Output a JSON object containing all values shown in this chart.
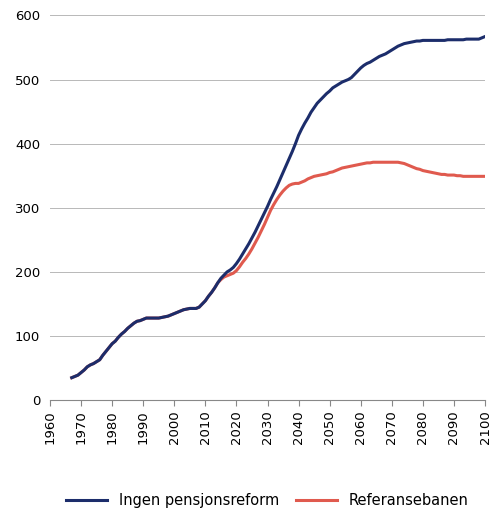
{
  "xlim": [
    1960,
    2100
  ],
  "ylim": [
    0,
    600
  ],
  "yticks": [
    0,
    100,
    200,
    300,
    400,
    500,
    600
  ],
  "xticks": [
    1960,
    1970,
    1980,
    1990,
    2000,
    2010,
    2020,
    2030,
    2040,
    2050,
    2060,
    2070,
    2080,
    2090,
    2100
  ],
  "ingen_reform_color": "#1c2d6b",
  "referanse_color": "#e05a4e",
  "ingen_reform_label": "Ingen pensjonsreform",
  "referanse_label": "Referansebanen",
  "ingen_reform": {
    "x": [
      1967,
      1968,
      1969,
      1970,
      1971,
      1972,
      1973,
      1974,
      1975,
      1976,
      1977,
      1978,
      1979,
      1980,
      1981,
      1982,
      1983,
      1984,
      1985,
      1986,
      1987,
      1988,
      1989,
      1990,
      1991,
      1992,
      1993,
      1994,
      1995,
      1996,
      1997,
      1998,
      1999,
      2000,
      2001,
      2002,
      2003,
      2004,
      2005,
      2006,
      2007,
      2008,
      2009,
      2010,
      2011,
      2012,
      2013,
      2014,
      2015,
      2016,
      2017,
      2018,
      2019,
      2020,
      2021,
      2022,
      2023,
      2024,
      2025,
      2026,
      2027,
      2028,
      2029,
      2030,
      2031,
      2032,
      2033,
      2034,
      2035,
      2036,
      2037,
      2038,
      2039,
      2040,
      2041,
      2042,
      2043,
      2044,
      2045,
      2046,
      2047,
      2048,
      2049,
      2050,
      2051,
      2052,
      2053,
      2054,
      2055,
      2056,
      2057,
      2058,
      2059,
      2060,
      2061,
      2062,
      2063,
      2064,
      2065,
      2066,
      2067,
      2068,
      2069,
      2070,
      2071,
      2072,
      2073,
      2074,
      2075,
      2076,
      2077,
      2078,
      2079,
      2080,
      2081,
      2082,
      2083,
      2084,
      2085,
      2086,
      2087,
      2088,
      2089,
      2090,
      2091,
      2092,
      2093,
      2094,
      2095,
      2096,
      2097,
      2098,
      2099,
      2100
    ],
    "y": [
      35,
      37,
      39,
      43,
      47,
      52,
      55,
      57,
      60,
      63,
      70,
      76,
      82,
      88,
      92,
      98,
      103,
      107,
      112,
      116,
      120,
      123,
      124,
      126,
      128,
      128,
      128,
      128,
      128,
      129,
      130,
      131,
      133,
      135,
      137,
      139,
      141,
      142,
      143,
      143,
      143,
      145,
      150,
      155,
      162,
      168,
      175,
      183,
      190,
      195,
      200,
      203,
      207,
      213,
      220,
      228,
      236,
      244,
      253,
      262,
      272,
      282,
      292,
      302,
      313,
      323,
      333,
      344,
      355,
      366,
      377,
      388,
      400,
      413,
      423,
      432,
      440,
      449,
      456,
      463,
      468,
      473,
      478,
      482,
      487,
      490,
      493,
      496,
      498,
      500,
      503,
      508,
      513,
      518,
      522,
      525,
      527,
      530,
      533,
      536,
      538,
      540,
      543,
      546,
      549,
      552,
      554,
      556,
      557,
      558,
      559,
      560,
      560,
      561,
      561,
      561,
      561,
      561,
      561,
      561,
      561,
      562,
      562,
      562,
      562,
      562,
      562,
      563,
      563,
      563,
      563,
      563,
      565,
      567
    ]
  },
  "referanse": {
    "x": [
      1967,
      1968,
      1969,
      1970,
      1971,
      1972,
      1973,
      1974,
      1975,
      1976,
      1977,
      1978,
      1979,
      1980,
      1981,
      1982,
      1983,
      1984,
      1985,
      1986,
      1987,
      1988,
      1989,
      1990,
      1991,
      1992,
      1993,
      1994,
      1995,
      1996,
      1997,
      1998,
      1999,
      2000,
      2001,
      2002,
      2003,
      2004,
      2005,
      2006,
      2007,
      2008,
      2009,
      2010,
      2011,
      2012,
      2013,
      2014,
      2015,
      2016,
      2017,
      2018,
      2019,
      2020,
      2021,
      2022,
      2023,
      2024,
      2025,
      2026,
      2027,
      2028,
      2029,
      2030,
      2031,
      2032,
      2033,
      2034,
      2035,
      2036,
      2037,
      2038,
      2039,
      2040,
      2041,
      2042,
      2043,
      2044,
      2045,
      2046,
      2047,
      2048,
      2049,
      2050,
      2051,
      2052,
      2053,
      2054,
      2055,
      2056,
      2057,
      2058,
      2059,
      2060,
      2061,
      2062,
      2063,
      2064,
      2065,
      2066,
      2067,
      2068,
      2069,
      2070,
      2071,
      2072,
      2073,
      2074,
      2075,
      2076,
      2077,
      2078,
      2079,
      2080,
      2081,
      2082,
      2083,
      2084,
      2085,
      2086,
      2087,
      2088,
      2089,
      2090,
      2091,
      2092,
      2093,
      2094,
      2095,
      2096,
      2097,
      2098,
      2099,
      2100
    ],
    "y": [
      35,
      37,
      39,
      43,
      47,
      52,
      55,
      57,
      60,
      63,
      70,
      76,
      82,
      88,
      92,
      98,
      103,
      107,
      112,
      116,
      120,
      123,
      124,
      126,
      128,
      128,
      128,
      128,
      128,
      129,
      130,
      131,
      133,
      135,
      137,
      139,
      141,
      142,
      143,
      143,
      143,
      145,
      150,
      155,
      162,
      168,
      175,
      183,
      188,
      192,
      194,
      196,
      198,
      202,
      208,
      215,
      221,
      228,
      236,
      245,
      254,
      264,
      274,
      285,
      296,
      305,
      313,
      320,
      326,
      331,
      335,
      337,
      338,
      338,
      340,
      342,
      345,
      347,
      349,
      350,
      351,
      352,
      353,
      355,
      356,
      358,
      360,
      362,
      363,
      364,
      365,
      366,
      367,
      368,
      369,
      370,
      370,
      371,
      371,
      371,
      371,
      371,
      371,
      371,
      371,
      371,
      370,
      369,
      367,
      365,
      363,
      361,
      360,
      358,
      357,
      356,
      355,
      354,
      353,
      352,
      352,
      351,
      351,
      351,
      350,
      350,
      349,
      349,
      349,
      349,
      349,
      349,
      349,
      349
    ]
  },
  "linewidth": 2.2,
  "background_color": "#ffffff",
  "grid_color": "#b8b8b8",
  "legend_fontsize": 10.5,
  "tick_fontsize": 9.5
}
